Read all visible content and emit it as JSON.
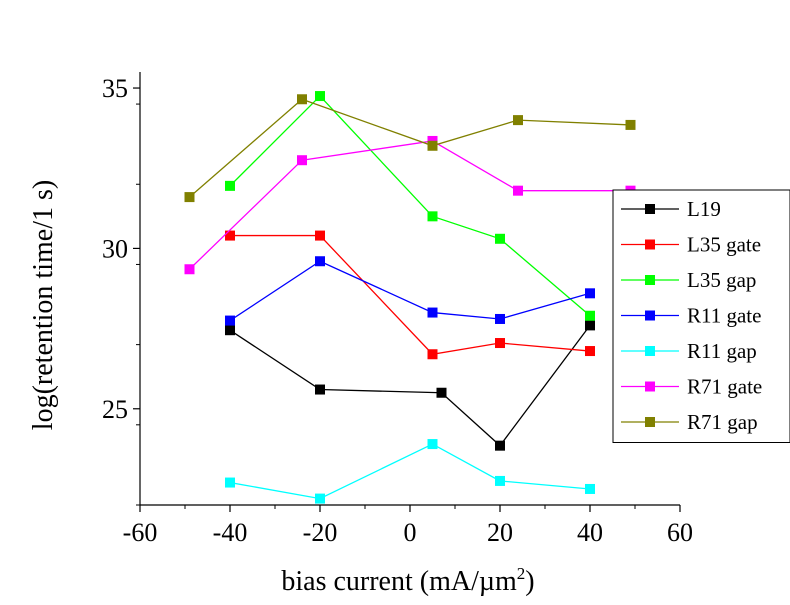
{
  "chart_data": {
    "type": "line",
    "xlabel": "bias current (mA/µm",
    "xlabel_sup": "2",
    "xlabel_close": ")",
    "ylabel": "log(retention time/1 s)",
    "xlim": [
      -60,
      60
    ],
    "ylim": [
      22,
      35.5
    ],
    "xticks": [
      -60,
      -40,
      -20,
      0,
      20,
      40,
      60
    ],
    "xtick_labels": [
      "-60",
      "-40",
      "-20",
      "0",
      "20",
      "40",
      "60"
    ],
    "yticks": [
      25,
      30,
      35
    ],
    "ytick_labels": [
      "25",
      "30",
      "35"
    ],
    "grid": false,
    "legend": "right",
    "series": [
      {
        "name": "L19",
        "color": "#000000",
        "x": [
          -40,
          -20,
          7,
          20,
          40
        ],
        "y": [
          27.45,
          25.6,
          25.5,
          23.85,
          27.6
        ]
      },
      {
        "name": "L35 gate",
        "color": "#ff0000",
        "x": [
          -40,
          -20,
          5,
          20,
          40
        ],
        "y": [
          30.4,
          30.4,
          26.7,
          27.05,
          26.8
        ]
      },
      {
        "name": "L35 gap",
        "color": "#00ff00",
        "x": [
          -40,
          -20,
          5,
          20,
          40
        ],
        "y": [
          31.95,
          34.75,
          31.0,
          30.3,
          27.9
        ]
      },
      {
        "name": "R11 gate",
        "color": "#0000ff",
        "x": [
          -40,
          -20,
          5,
          20,
          40
        ],
        "y": [
          27.75,
          29.6,
          28.0,
          27.8,
          28.6
        ]
      },
      {
        "name": "R11 gap",
        "color": "#00ffff",
        "x": [
          -40,
          -20,
          5,
          20,
          40
        ],
        "y": [
          22.7,
          22.2,
          23.9,
          22.75,
          22.5
        ]
      },
      {
        "name": "R71 gate",
        "color": "#ff00ff",
        "x": [
          -49,
          -24,
          5,
          24,
          49
        ],
        "y": [
          29.35,
          32.75,
          33.35,
          31.8,
          31.8
        ]
      },
      {
        "name": "R71 gap",
        "color": "#808000",
        "x": [
          -49,
          -24,
          5,
          24,
          49
        ],
        "y": [
          31.6,
          34.65,
          33.2,
          34.0,
          33.85
        ]
      }
    ]
  }
}
